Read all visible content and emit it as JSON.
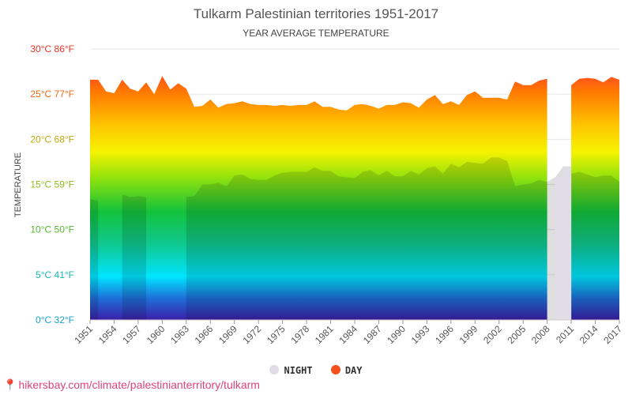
{
  "chart_data": {
    "type": "area",
    "title": "Tulkarm Palestinian territories 1951-2017",
    "subtitle": "YEAR AVERAGE TEMPERATURE",
    "ylabel": "TEMPERATURE",
    "ylim": [
      0,
      30
    ],
    "yticks": [
      {
        "value": 0,
        "label": "0°C 32°F",
        "color": "#1aa3d6"
      },
      {
        "value": 5,
        "label": "5°C 41°F",
        "color": "#17b8b0"
      },
      {
        "value": 10,
        "label": "10°C 50°F",
        "color": "#55b82e"
      },
      {
        "value": 15,
        "label": "15°C 59°F",
        "color": "#8dbb1a"
      },
      {
        "value": 20,
        "label": "20°C 68°F",
        "color": "#bcaa0e"
      },
      {
        "value": 25,
        "label": "25°C 77°F",
        "color": "#ee6a10"
      },
      {
        "value": 30,
        "label": "30°C 86°F",
        "color": "#ee3322"
      }
    ],
    "xticks": [
      "1951",
      "1954",
      "1957",
      "1960",
      "1963",
      "1966",
      "1969",
      "1972",
      "1975",
      "1978",
      "1981",
      "1984",
      "1987",
      "1990",
      "1993",
      "1996",
      "1999",
      "2002",
      "2005",
      "2008",
      "2011",
      "2014",
      "2017"
    ],
    "x": [
      1951,
      1952,
      1953,
      1954,
      1955,
      1956,
      1957,
      1958,
      1959,
      1960,
      1961,
      1962,
      1963,
      1964,
      1965,
      1966,
      1967,
      1968,
      1969,
      1970,
      1971,
      1972,
      1973,
      1974,
      1975,
      1976,
      1977,
      1978,
      1979,
      1980,
      1981,
      1982,
      1983,
      1984,
      1985,
      1986,
      1987,
      1988,
      1989,
      1990,
      1991,
      1992,
      1993,
      1994,
      1995,
      1996,
      1997,
      1998,
      1999,
      2000,
      2001,
      2002,
      2003,
      2004,
      2005,
      2006,
      2007,
      2008,
      2009,
      2010,
      2011,
      2012,
      2013,
      2014,
      2015,
      2016,
      2017
    ],
    "series": [
      {
        "name": "DAY",
        "color": "#f4511e",
        "values": [
          26.6,
          26.6,
          25.3,
          25.1,
          26.6,
          25.6,
          25.3,
          26.3,
          25.0,
          27.0,
          25.5,
          26.2,
          25.6,
          23.6,
          23.7,
          24.4,
          23.5,
          23.9,
          24.0,
          24.2,
          23.9,
          23.8,
          23.8,
          23.7,
          23.8,
          23.7,
          23.8,
          23.8,
          24.2,
          23.6,
          23.6,
          23.3,
          23.2,
          23.8,
          23.9,
          23.7,
          23.4,
          23.8,
          23.8,
          24.1,
          24.0,
          23.5,
          24.4,
          24.9,
          23.9,
          24.2,
          23.8,
          24.9,
          25.3,
          24.6,
          24.6,
          24.6,
          24.4,
          26.4,
          26.0,
          26.0,
          26.5,
          26.7,
          null,
          null,
          26.0,
          26.7,
          26.8,
          26.7,
          26.3,
          26.9,
          26.6
        ]
      },
      {
        "name": "NIGHT",
        "color": "#e0dde6",
        "values": [
          13.4,
          13.2,
          null,
          null,
          13.9,
          13.6,
          13.7,
          13.6,
          null,
          null,
          null,
          null,
          13.6,
          13.7,
          15.0,
          15.0,
          15.2,
          14.8,
          16.0,
          16.1,
          15.6,
          15.5,
          15.5,
          16.0,
          16.3,
          16.4,
          16.4,
          16.4,
          16.9,
          16.5,
          16.5,
          15.9,
          15.8,
          15.7,
          16.4,
          16.6,
          16.0,
          16.5,
          15.9,
          15.9,
          16.5,
          16.1,
          16.8,
          17.0,
          16.2,
          17.3,
          16.9,
          17.5,
          17.4,
          17.3,
          18.0,
          18.0,
          17.6,
          14.8,
          15.0,
          15.1,
          15.5,
          15.3,
          15.8,
          17.0,
          16.2,
          16.4,
          16.1,
          15.8,
          16.0,
          16.0,
          15.3
        ]
      }
    ],
    "legend": {
      "position": "bottom",
      "items": [
        "NIGHT",
        "DAY"
      ]
    }
  },
  "credit": "hikersbay.com/climate/palestinianterritory/tulkarm"
}
